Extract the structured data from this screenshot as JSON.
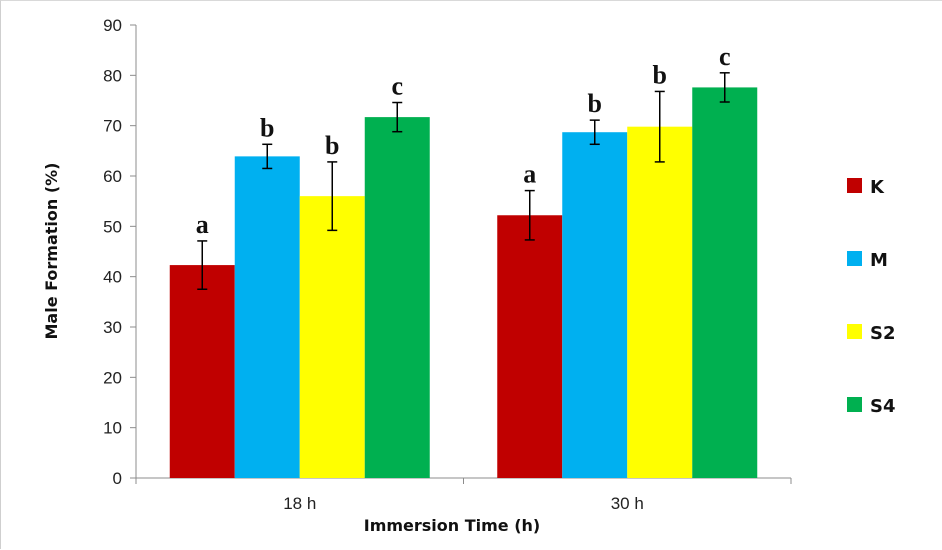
{
  "chart_data": {
    "type": "bar",
    "title": "",
    "xlabel": "Immersion Time (h)",
    "ylabel": "Male Formation (%)",
    "ylim": [
      0,
      90
    ],
    "yticks": [
      0,
      10,
      20,
      30,
      40,
      50,
      60,
      70,
      80,
      90
    ],
    "categories": [
      "18 h",
      "30 h"
    ],
    "series": [
      {
        "name": "K",
        "color": "#c00000",
        "values": [
          42.3,
          52.2
        ],
        "errors": [
          4.8,
          4.9
        ],
        "sig": [
          "a",
          "a"
        ]
      },
      {
        "name": "M",
        "color": "#00b0f0",
        "values": [
          63.9,
          68.7
        ],
        "errors": [
          2.4,
          2.4
        ],
        "sig": [
          "b",
          "b"
        ]
      },
      {
        "name": "S2",
        "color": "#ffff00",
        "values": [
          56.0,
          69.8
        ],
        "errors": [
          6.8,
          7.0
        ],
        "sig": [
          "b",
          "b"
        ]
      },
      {
        "name": "S4",
        "color": "#00b050",
        "values": [
          71.7,
          77.6
        ],
        "errors": [
          2.9,
          2.9
        ],
        "sig": [
          "c",
          "c"
        ]
      }
    ],
    "grid": false,
    "legend_position": "right"
  }
}
